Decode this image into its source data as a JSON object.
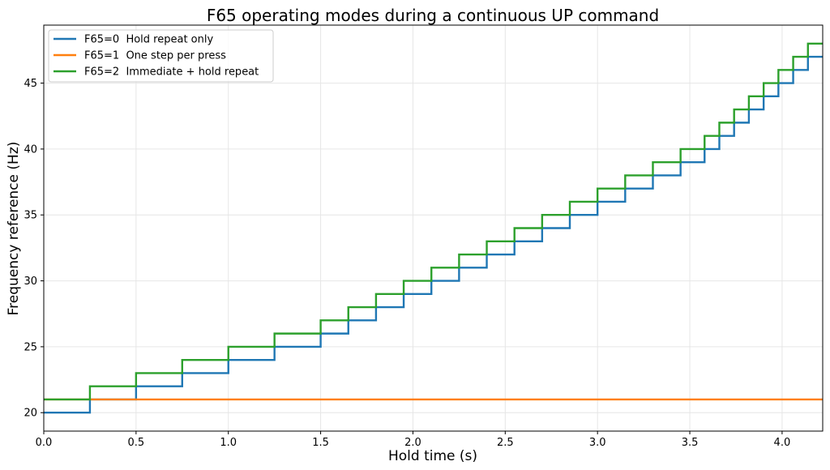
{
  "chart_data": {
    "type": "line",
    "title": "F65 operating modes during a continuous UP command",
    "xlabel": "Hold time (s)",
    "ylabel": "Frequency reference (Hz)",
    "xlim": [
      0.0,
      4.22
    ],
    "ylim": [
      18.6,
      49.4
    ],
    "xticks": [
      "0.0",
      "0.5",
      "1.0",
      "1.5",
      "2.0",
      "2.5",
      "3.0",
      "3.5",
      "4.0"
    ],
    "yticks": [
      "20",
      "25",
      "30",
      "35",
      "40",
      "45"
    ],
    "grid": true,
    "legend_position": "top-left",
    "step": "post",
    "series": [
      {
        "name": "F65=0  Hold repeat only",
        "color": "#1f77b4",
        "x": [
          0.0,
          0.25,
          0.5,
          0.75,
          1.0,
          1.25,
          1.5,
          1.65,
          1.8,
          1.95,
          2.1,
          2.25,
          2.4,
          2.55,
          2.7,
          2.85,
          3.0,
          3.15,
          3.3,
          3.45,
          3.58,
          3.66,
          3.74,
          3.82,
          3.9,
          3.98,
          4.06,
          4.14,
          4.22
        ],
        "y": [
          20,
          21,
          22,
          23,
          24,
          25,
          26,
          27,
          28,
          29,
          30,
          31,
          32,
          33,
          34,
          35,
          36,
          37,
          38,
          39,
          40,
          41,
          42,
          43,
          44,
          45,
          46,
          47,
          47
        ]
      },
      {
        "name": "F65=1  One step per press",
        "color": "#ff7f0e",
        "x": [
          0.0,
          4.22
        ],
        "y": [
          21,
          21
        ]
      },
      {
        "name": "F65=2  Immediate + hold repeat",
        "color": "#2ca02c",
        "x": [
          0.0,
          0.25,
          0.5,
          0.75,
          1.0,
          1.25,
          1.5,
          1.65,
          1.8,
          1.95,
          2.1,
          2.25,
          2.4,
          2.55,
          2.7,
          2.85,
          3.0,
          3.15,
          3.3,
          3.45,
          3.58,
          3.66,
          3.74,
          3.82,
          3.9,
          3.98,
          4.06,
          4.14,
          4.22
        ],
        "y": [
          21,
          22,
          23,
          24,
          25,
          26,
          27,
          28,
          29,
          30,
          31,
          32,
          33,
          34,
          35,
          36,
          37,
          38,
          39,
          40,
          41,
          42,
          43,
          44,
          45,
          46,
          47,
          48,
          48
        ]
      }
    ]
  }
}
